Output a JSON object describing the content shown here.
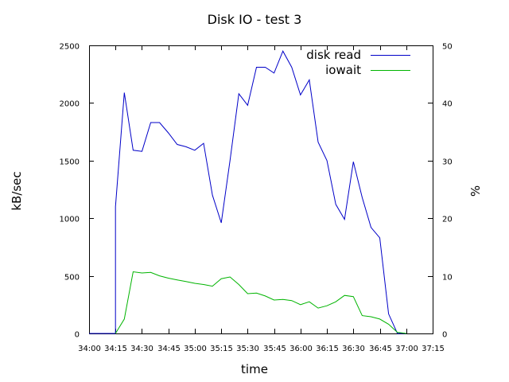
{
  "chart_data": {
    "type": "line",
    "title": "Disk IO - test 3",
    "xlabel": "time",
    "ylabel": "kB/sec",
    "y2label": "%",
    "xlim": [
      "34:00",
      "37:15"
    ],
    "ylim": [
      0,
      2500
    ],
    "y2lim": [
      0,
      50
    ],
    "xticks": [
      "34:00",
      "34:15",
      "34:30",
      "34:45",
      "35:00",
      "35:15",
      "35:30",
      "35:45",
      "36:00",
      "36:15",
      "36:30",
      "36:45",
      "37:00",
      "37:15"
    ],
    "yticks": [
      0,
      500,
      1000,
      1500,
      2000,
      2500
    ],
    "y2ticks": [
      0,
      10,
      20,
      30,
      40,
      50
    ],
    "grid": false,
    "legend_position": "top-right",
    "series": [
      {
        "name": "disk read",
        "axis": "left",
        "color": "#0000c8",
        "x": [
          "34:00",
          "34:15",
          "34:15",
          "34:20",
          "34:25",
          "34:30",
          "34:35",
          "34:40",
          "34:45",
          "34:50",
          "34:55",
          "35:00",
          "35:05",
          "35:10",
          "35:15",
          "35:20",
          "35:25",
          "35:30",
          "35:35",
          "35:40",
          "35:45",
          "35:50",
          "35:55",
          "36:00",
          "36:05",
          "36:10",
          "36:15",
          "36:20",
          "36:25",
          "36:30",
          "36:35",
          "36:40",
          "36:45",
          "36:50",
          "36:55",
          "37:00",
          "37:00"
        ],
        "y": [
          0,
          0,
          1100,
          2090,
          1590,
          1580,
          1830,
          1830,
          1740,
          1640,
          1620,
          1590,
          1650,
          1200,
          960,
          1500,
          2080,
          1980,
          2310,
          2310,
          2260,
          2450,
          2310,
          2070,
          2200,
          1660,
          1500,
          1120,
          990,
          1490,
          1180,
          920,
          830,
          170,
          0,
          0,
          0
        ]
      },
      {
        "name": "iowait",
        "axis": "right",
        "color": "#00b400",
        "x": [
          "34:15",
          "34:20",
          "34:25",
          "34:30",
          "34:35",
          "34:40",
          "34:45",
          "34:50",
          "34:55",
          "35:00",
          "35:05",
          "35:10",
          "35:15",
          "35:20",
          "35:25",
          "35:30",
          "35:35",
          "35:40",
          "35:45",
          "35:50",
          "35:55",
          "36:00",
          "36:05",
          "36:10",
          "36:15",
          "36:20",
          "36:25",
          "36:30",
          "36:35",
          "36:40",
          "36:45",
          "36:50",
          "36:55",
          "37:00"
        ],
        "y": [
          0,
          2.5,
          10.7,
          10.5,
          10.6,
          10.0,
          9.6,
          9.3,
          9.0,
          8.7,
          8.5,
          8.2,
          9.5,
          9.8,
          8.5,
          6.9,
          7.0,
          6.5,
          5.8,
          5.9,
          5.7,
          5.0,
          5.5,
          4.4,
          4.8,
          5.5,
          6.6,
          6.4,
          3.1,
          2.9,
          2.5,
          1.6,
          0.2,
          0
        ]
      }
    ]
  }
}
